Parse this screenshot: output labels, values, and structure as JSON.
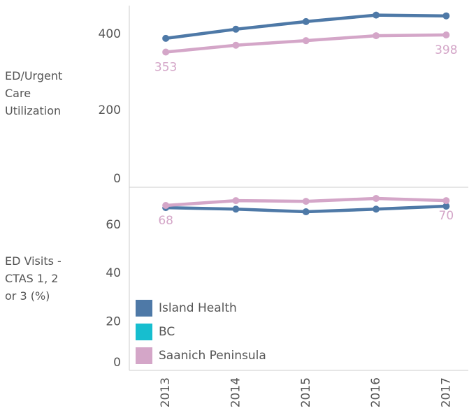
{
  "chart_data": [
    {
      "type": "line",
      "y_label": "ED/Urgent Care Utilization",
      "categories": [
        "2013",
        "2014",
        "2015",
        "2016",
        "2017"
      ],
      "ylim": [
        0,
        475
      ],
      "yticks": [
        0,
        200,
        400
      ],
      "series": [
        {
          "name": "Island Health",
          "color": "#4e79a7",
          "values": [
            389,
            413,
            433,
            450,
            448
          ]
        },
        {
          "name": "BC",
          "color": "#17becf",
          "values": [
            null,
            null,
            null,
            null,
            null
          ]
        },
        {
          "name": "Saanich Peninsula",
          "color": "#d4a6c8",
          "values": [
            353,
            371,
            383,
            396,
            398
          ]
        }
      ]
    },
    {
      "type": "line",
      "y_label": "ED Visits - CTAS 1, 2 or 3 (%)",
      "categories": [
        "2013",
        "2014",
        "2015",
        "2016",
        "2017"
      ],
      "ylim": [
        0,
        75.5
      ],
      "yticks": [
        0,
        20,
        40,
        60
      ],
      "series": [
        {
          "name": "Island Health",
          "color": "#4e79a7",
          "values": [
            67.1,
            66.5,
            65.4,
            66.5,
            67.7
          ]
        },
        {
          "name": "BC",
          "color": "#17becf",
          "values": [
            null,
            null,
            null,
            null,
            null
          ]
        },
        {
          "name": "Saanich Peninsula",
          "color": "#d4a6c8",
          "values": [
            68,
            70,
            69.7,
            70.9,
            70
          ]
        }
      ]
    }
  ]
}
